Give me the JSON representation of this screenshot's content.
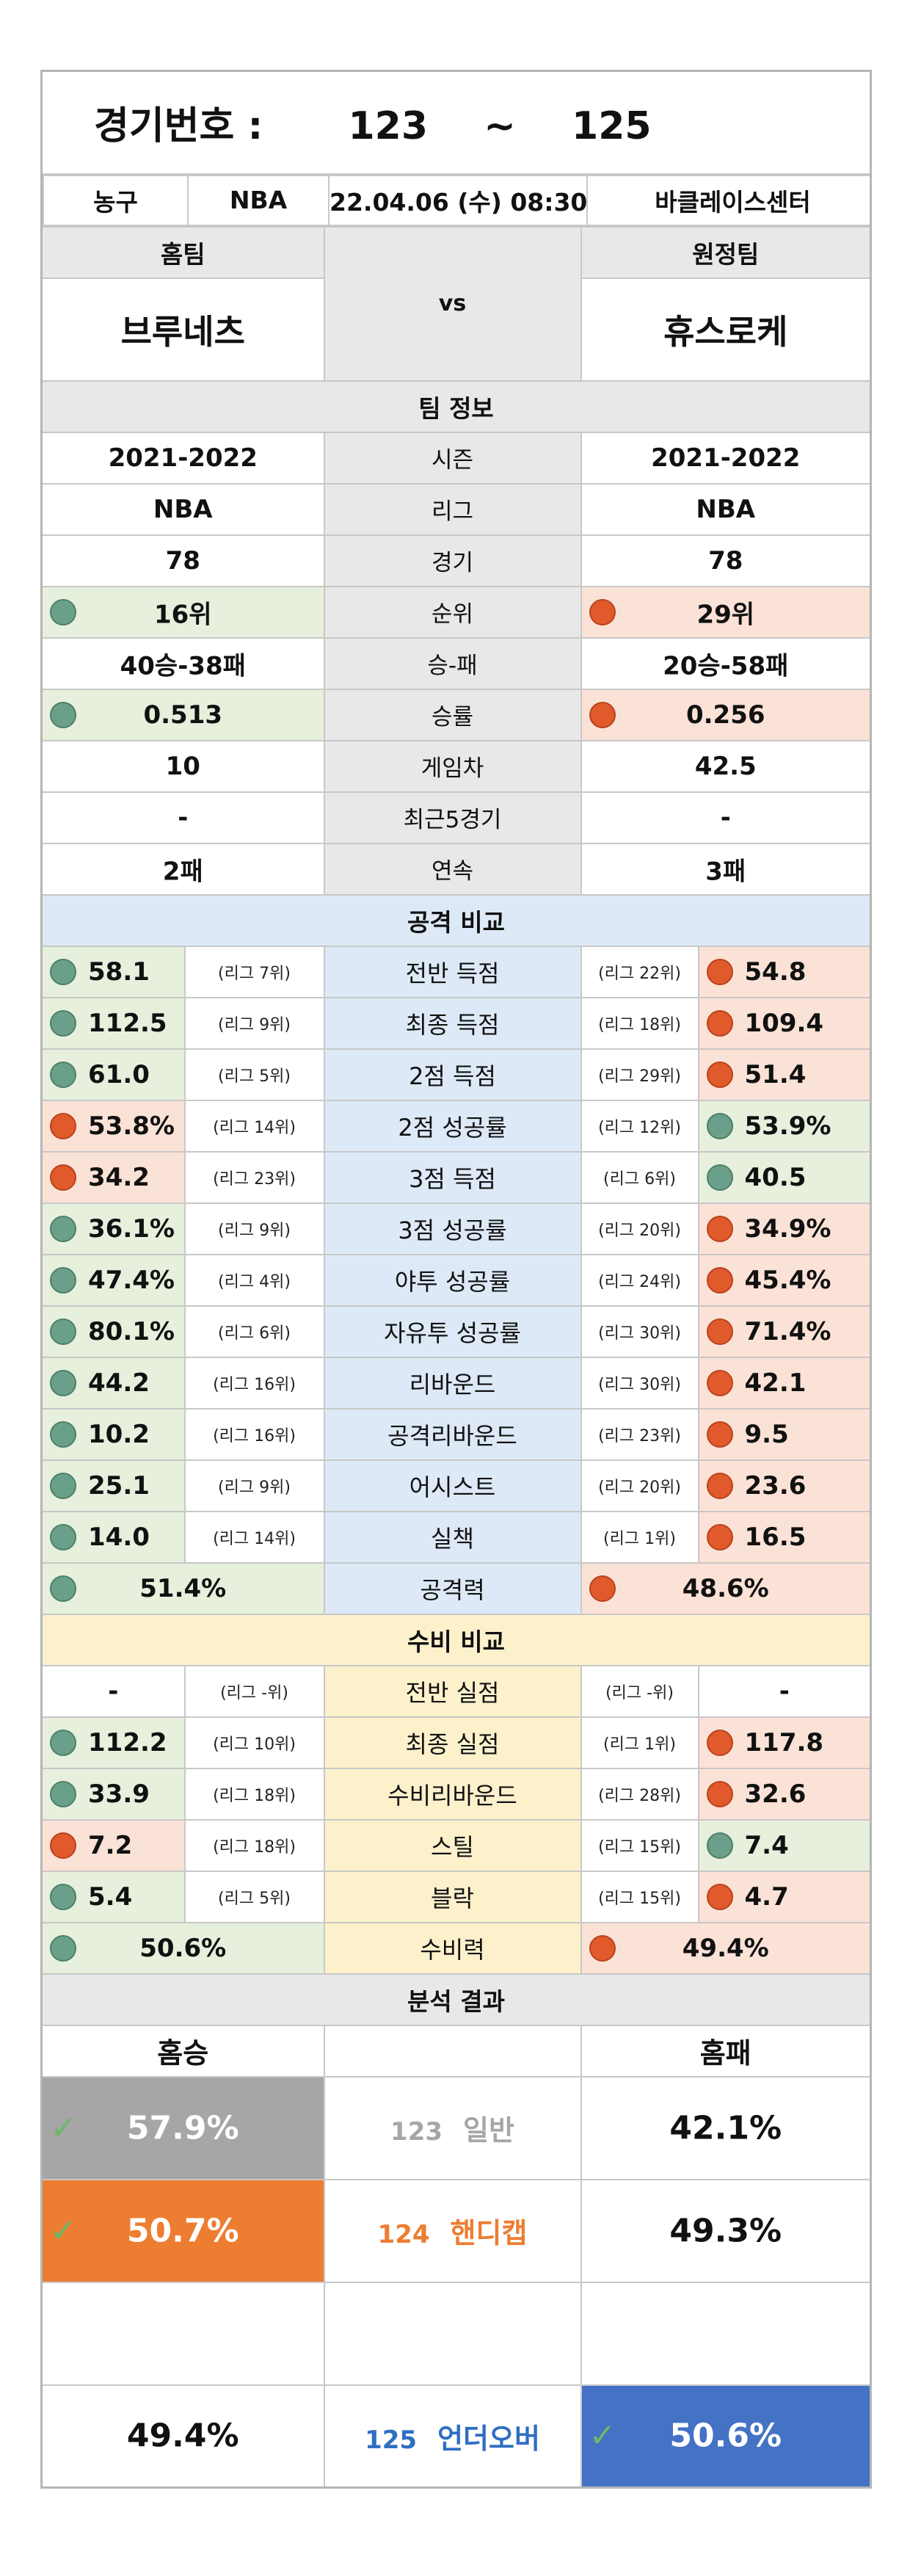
{
  "header": {
    "title_label": "경기번호 :",
    "range_start": "123",
    "range_sep": "~",
    "range_end": "125"
  },
  "match": {
    "sport": "농구",
    "league": "NBA",
    "datetime": "22.04.06 (수) 08:30",
    "venue": "바클레이스센터",
    "home_label": "홈팀",
    "away_label": "원정팀",
    "vs": "vs",
    "home_team": "브루네츠",
    "away_team": "휴스로케"
  },
  "team_info": {
    "section": "팀 정보",
    "rows": [
      {
        "home": "2021-2022",
        "label": "시즌",
        "away": "2021-2022",
        "hdot": "",
        "adot": ""
      },
      {
        "home": "NBA",
        "label": "리그",
        "away": "NBA",
        "hdot": "",
        "adot": ""
      },
      {
        "home": "78",
        "label": "경기",
        "away": "78",
        "hdot": "",
        "adot": ""
      },
      {
        "home": "16위",
        "label": "순위",
        "away": "29위",
        "hdot": "g",
        "adot": "r"
      },
      {
        "home": "40승-38패",
        "label": "승-패",
        "away": "20승-58패",
        "hdot": "",
        "adot": ""
      },
      {
        "home": "0.513",
        "label": "승률",
        "away": "0.256",
        "hdot": "g",
        "adot": "r"
      },
      {
        "home": "10",
        "label": "게임차",
        "away": "42.5",
        "hdot": "",
        "adot": ""
      },
      {
        "home": "-",
        "label": "최근5경기",
        "away": "-",
        "hdot": "",
        "adot": ""
      },
      {
        "home": "2패",
        "label": "연속",
        "away": "3패",
        "hdot": "",
        "adot": ""
      }
    ]
  },
  "attack": {
    "section": "공격 비교",
    "rows": [
      {
        "home": "58.1",
        "hrank": "(리그 7위)",
        "label": "전반 득점",
        "arank": "(리그 22위)",
        "away": "54.8",
        "hdot": "g",
        "adot": "r"
      },
      {
        "home": "112.5",
        "hrank": "(리그 9위)",
        "label": "최종 득점",
        "arank": "(리그 18위)",
        "away": "109.4",
        "hdot": "g",
        "adot": "r"
      },
      {
        "home": "61.0",
        "hrank": "(리그 5위)",
        "label": "2점 득점",
        "arank": "(리그 29위)",
        "away": "51.4",
        "hdot": "g",
        "adot": "r"
      },
      {
        "home": "53.8%",
        "hrank": "(리그 14위)",
        "label": "2점 성공률",
        "arank": "(리그 12위)",
        "away": "53.9%",
        "hdot": "r",
        "adot": "g"
      },
      {
        "home": "34.2",
        "hrank": "(리그 23위)",
        "label": "3점 득점",
        "arank": "(리그 6위)",
        "away": "40.5",
        "hdot": "r",
        "adot": "g"
      },
      {
        "home": "36.1%",
        "hrank": "(리그 9위)",
        "label": "3점 성공률",
        "arank": "(리그 20위)",
        "away": "34.9%",
        "hdot": "g",
        "adot": "r"
      },
      {
        "home": "47.4%",
        "hrank": "(리그 4위)",
        "label": "야투 성공률",
        "arank": "(리그 24위)",
        "away": "45.4%",
        "hdot": "g",
        "adot": "r"
      },
      {
        "home": "80.1%",
        "hrank": "(리그 6위)",
        "label": "자유투 성공률",
        "arank": "(리그 30위)",
        "away": "71.4%",
        "hdot": "g",
        "adot": "r"
      },
      {
        "home": "44.2",
        "hrank": "(리그 16위)",
        "label": "리바운드",
        "arank": "(리그 30위)",
        "away": "42.1",
        "hdot": "g",
        "adot": "r"
      },
      {
        "home": "10.2",
        "hrank": "(리그 16위)",
        "label": "공격리바운드",
        "arank": "(리그 23위)",
        "away": "9.5",
        "hdot": "g",
        "adot": "r"
      },
      {
        "home": "25.1",
        "hrank": "(리그 9위)",
        "label": "어시스트",
        "arank": "(리그 20위)",
        "away": "23.6",
        "hdot": "g",
        "adot": "r"
      },
      {
        "home": "14.0",
        "hrank": "(리그 14위)",
        "label": "실책",
        "arank": "(리그 1위)",
        "away": "16.5",
        "hdot": "g",
        "adot": "r"
      }
    ],
    "total": {
      "home": "51.4%",
      "label": "공격력",
      "away": "48.6%",
      "hdot": "g",
      "adot": "r"
    }
  },
  "defense": {
    "section": "수비 비교",
    "rows": [
      {
        "home": "-",
        "hrank": "(리그 -위)",
        "label": "전반 실점",
        "arank": "(리그 -위)",
        "away": "-",
        "hdot": "",
        "adot": ""
      },
      {
        "home": "112.2",
        "hrank": "(리그 10위)",
        "label": "최종 실점",
        "arank": "(리그 1위)",
        "away": "117.8",
        "hdot": "g",
        "adot": "r"
      },
      {
        "home": "33.9",
        "hrank": "(리그 18위)",
        "label": "수비리바운드",
        "arank": "(리그 28위)",
        "away": "32.6",
        "hdot": "g",
        "adot": "r"
      },
      {
        "home": "7.2",
        "hrank": "(리그 18위)",
        "label": "스틸",
        "arank": "(리그 15위)",
        "away": "7.4",
        "hdot": "r",
        "adot": "g"
      },
      {
        "home": "5.4",
        "hrank": "(리그 5위)",
        "label": "블락",
        "arank": "(리그 15위)",
        "away": "4.7",
        "hdot": "g",
        "adot": "r"
      }
    ],
    "total": {
      "home": "50.6%",
      "label": "수비력",
      "away": "49.4%",
      "hdot": "g",
      "adot": "r"
    }
  },
  "analysis": {
    "section": "분석 결과",
    "home_head": "홈승",
    "away_head": "홈패",
    "rows": [
      {
        "home": "57.9%",
        "num": "123",
        "name": "일반",
        "away": "42.1%"
      },
      {
        "home": "50.7%",
        "num": "124",
        "name": "핸디캡",
        "away": "49.3%"
      },
      {
        "home": "49.4%",
        "num": "125",
        "name": "언더오버",
        "away": "50.6%"
      }
    ],
    "check_mark": "✓"
  },
  "colors": {
    "gray_pick": "#a6a6a6",
    "orange_pick": "#ed7d31",
    "blue_pick": "#4472c4",
    "green_dot": "#6aa08a",
    "red_dot": "#e05a2c"
  }
}
